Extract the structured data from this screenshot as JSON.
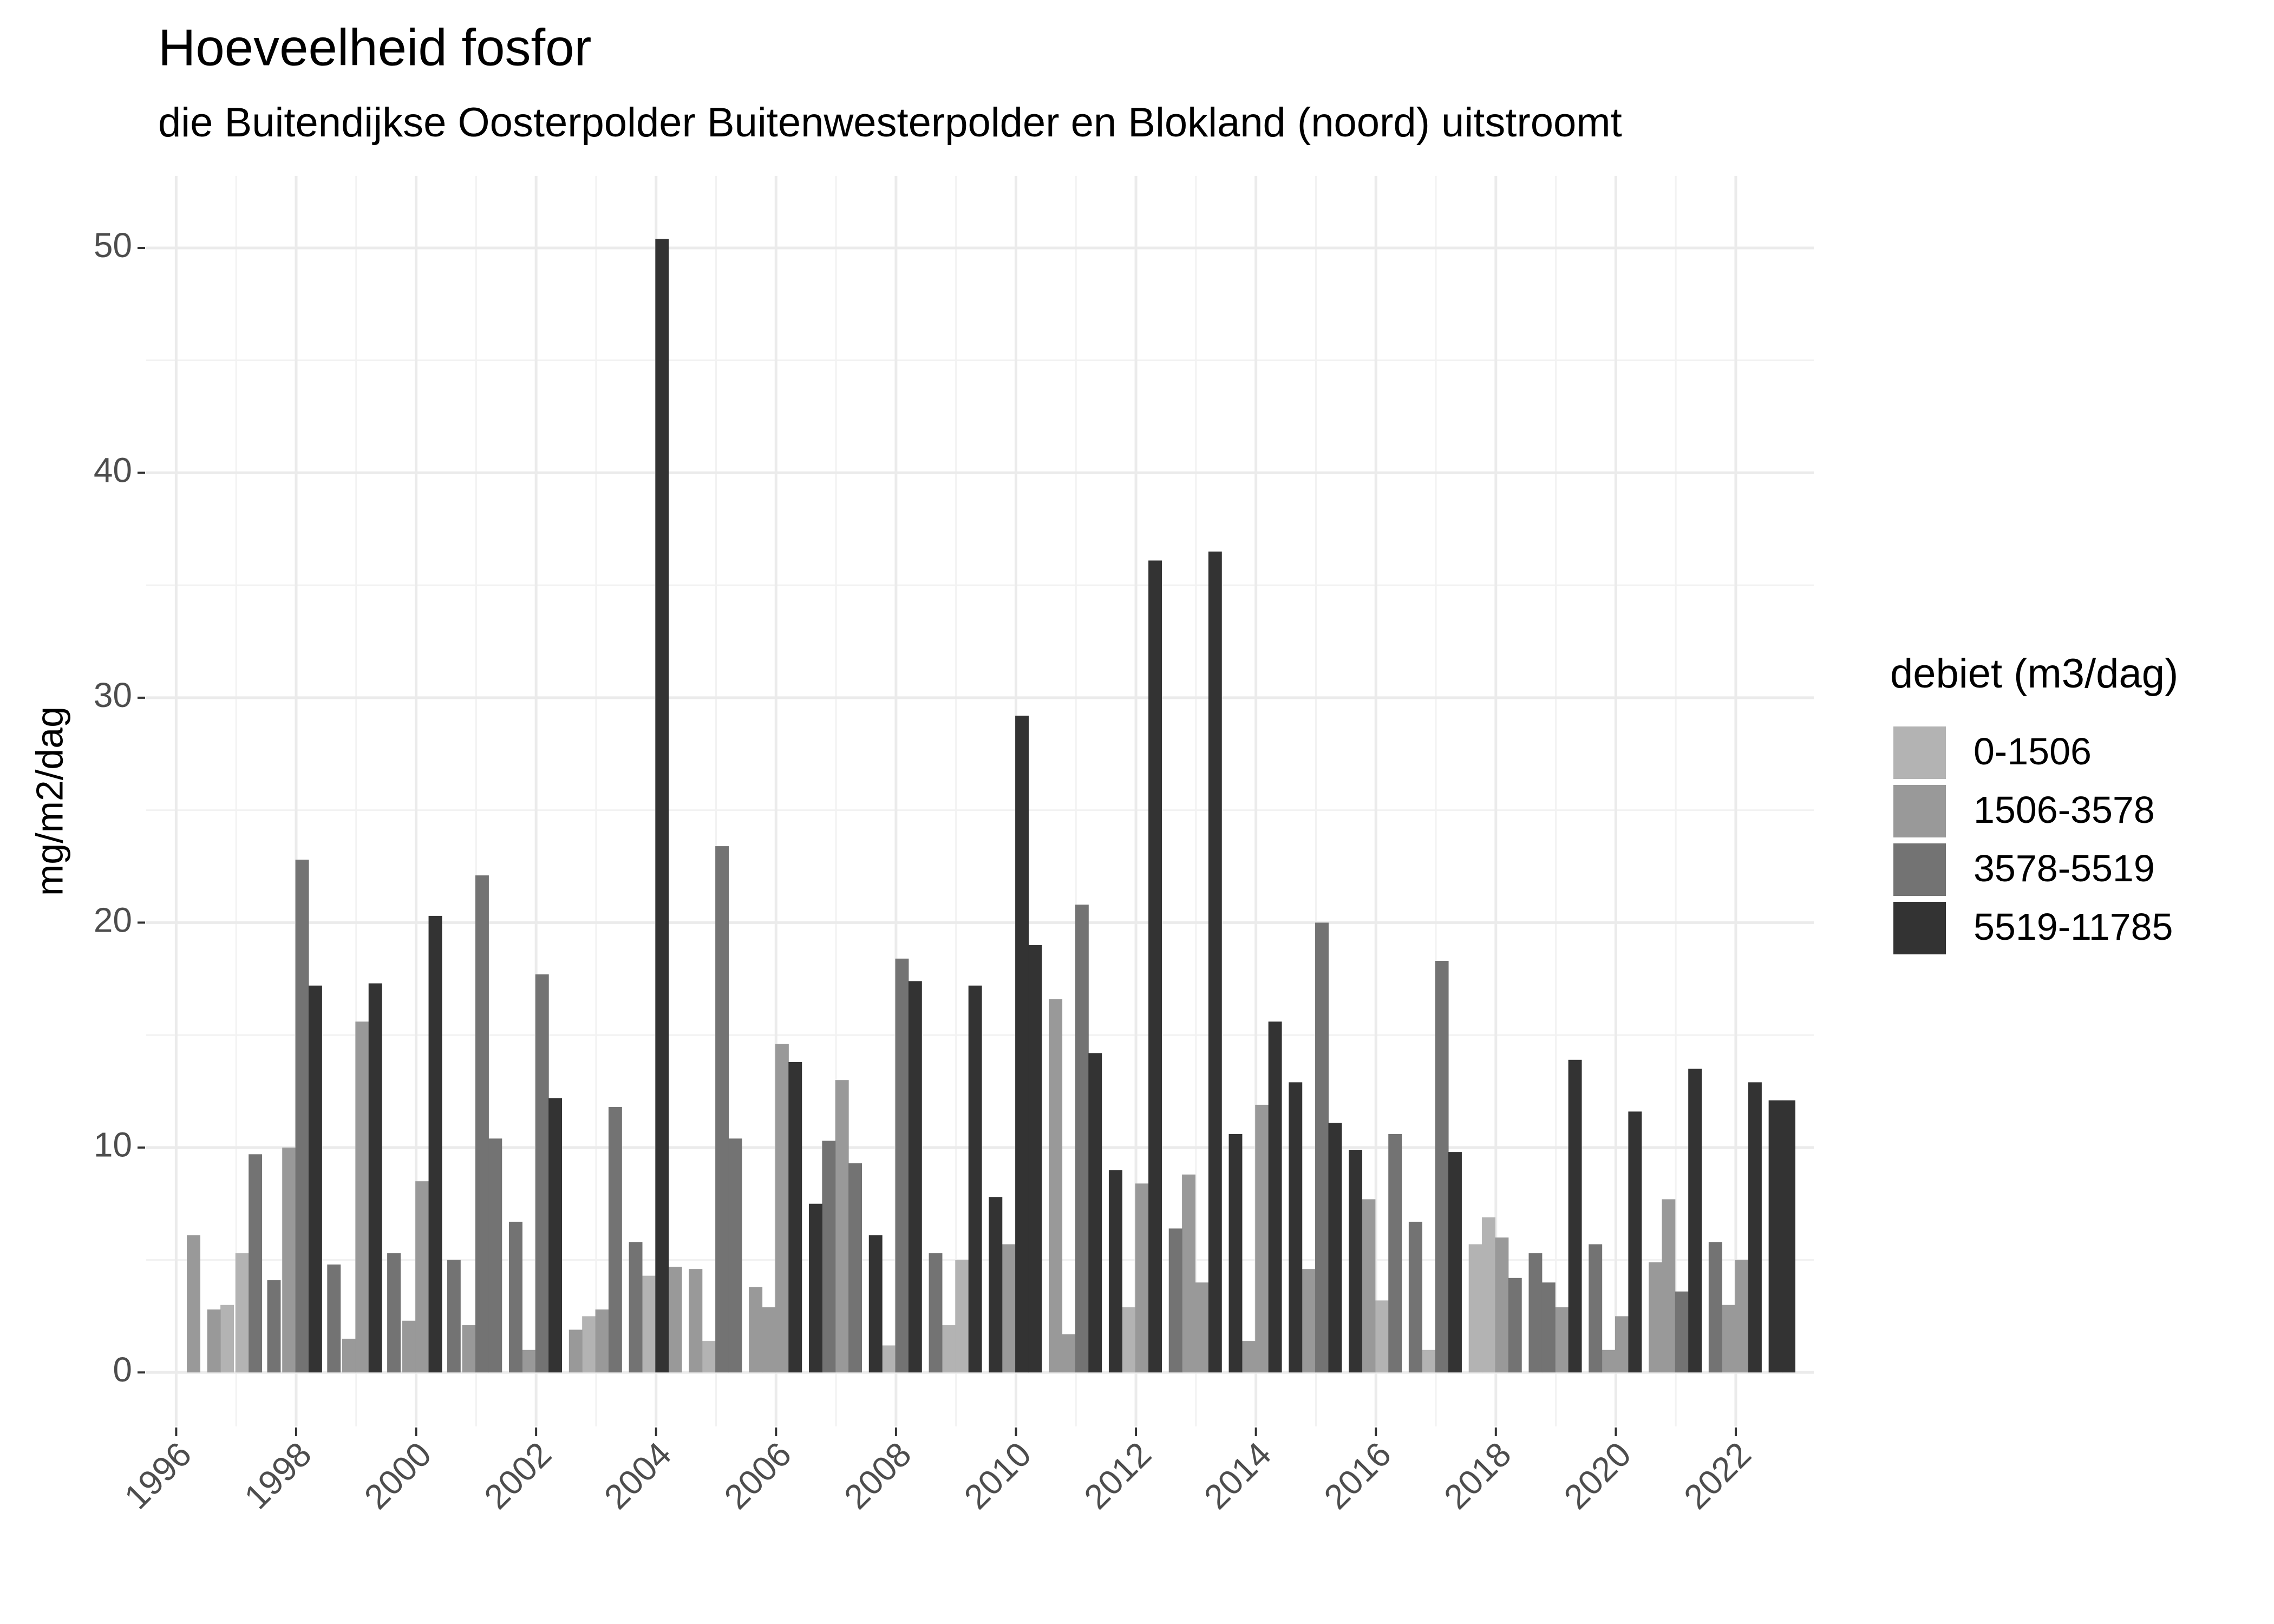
{
  "chart_data": {
    "type": "bar",
    "title": "Hoeveelheid fosfor",
    "subtitle": "die Buitendijkse Oosterpolder Buitenwesterpolder en Blokland (noord) uitstroomt",
    "y_label": "mg/m2/dag",
    "legend_title": "debiet (m3/dag)",
    "legend_position": "right",
    "grid": true,
    "xlim": [
      1995.5,
      2023.3
    ],
    "ylim": [
      -2.4,
      53.2
    ],
    "xticks": [
      1996,
      1998,
      2000,
      2002,
      2004,
      2006,
      2008,
      2010,
      2012,
      2014,
      2016,
      2018,
      2020,
      2022
    ],
    "yticks": [
      0,
      10,
      20,
      30,
      40,
      50
    ],
    "series": [
      {
        "name": "0-1506",
        "color": "#b3b3b3",
        "x": [
          1996.85,
          1997.1,
          2002.88,
          2003.88,
          2004.88,
          2007.88,
          2008.88,
          2009.1,
          2011.88,
          2016.1,
          2016.88,
          2017.66,
          2017.88
        ],
        "values": [
          3.0,
          5.3,
          2.5,
          4.3,
          1.4,
          1.2,
          2.1,
          5.0,
          2.9,
          3.2,
          1.0,
          5.7,
          6.9
        ]
      },
      {
        "name": "1506-3578",
        "color": "#999999",
        "x": [
          1996.29,
          1996.63,
          1997.88,
          1998.88,
          1999.1,
          1999.88,
          2000.1,
          2000.88,
          2001.88,
          2002.66,
          2003.1,
          2004.32,
          2004.66,
          2005.66,
          2005.88,
          2006.1,
          2007.1,
          2009.88,
          2010.66,
          2010.88,
          2012.1,
          2012.88,
          2013.1,
          2013.88,
          2014.1,
          2014.88,
          2015.88,
          2018.1,
          2019.1,
          2019.88,
          2020.1,
          2020.66,
          2020.88,
          2021.88,
          2022.1
        ],
        "values": [
          6.1,
          2.8,
          10.0,
          1.5,
          15.6,
          2.3,
          8.5,
          2.1,
          1.0,
          1.9,
          2.8,
          4.7,
          4.6,
          3.8,
          2.9,
          14.6,
          13.0,
          5.7,
          16.6,
          1.7,
          8.4,
          8.8,
          4.0,
          1.4,
          11.9,
          4.6,
          7.7,
          6.0,
          2.9,
          1.0,
          2.5,
          4.9,
          7.7,
          3.0,
          5.0
        ]
      },
      {
        "name": "3578-5519",
        "color": "#737373",
        "x": [
          1997.32,
          1997.63,
          1998.1,
          1998.63,
          1999.63,
          2000.63,
          2001.1,
          2001.32,
          2001.66,
          2002.1,
          2003.32,
          2003.66,
          2005.1,
          2005.32,
          2006.88,
          2007.32,
          2008.1,
          2008.66,
          2011.1,
          2012.66,
          2015.1,
          2016.32,
          2016.66,
          2017.1,
          2018.32,
          2018.66,
          2018.88,
          2019.66,
          2021.1,
          2021.66
        ],
        "values": [
          9.7,
          4.1,
          22.8,
          4.8,
          5.3,
          5.0,
          22.1,
          10.4,
          6.7,
          17.7,
          11.8,
          5.8,
          23.4,
          10.4,
          10.3,
          9.3,
          18.4,
          5.3,
          20.8,
          6.4,
          20.0,
          10.6,
          6.7,
          18.3,
          4.2,
          5.3,
          4.0,
          5.7,
          3.6,
          5.8
        ]
      },
      {
        "name": "5519-11785",
        "color": "#333333",
        "x": [
          1998.32,
          1999.32,
          2000.32,
          2002.32,
          2004.1,
          2006.32,
          2006.66,
          2007.66,
          2008.32,
          2009.32,
          2009.66,
          2010.1,
          2010.32,
          2011.32,
          2011.66,
          2012.32,
          2013.32,
          2013.66,
          2014.32,
          2014.66,
          2015.32,
          2015.66,
          2017.32,
          2019.32,
          2020.32,
          2021.32,
          2022.32,
          2022.66,
          2022.88
        ],
        "values": [
          17.2,
          17.3,
          20.3,
          12.2,
          50.4,
          13.8,
          7.5,
          6.1,
          17.4,
          17.2,
          7.8,
          29.2,
          19.0,
          14.2,
          9.0,
          36.1,
          36.5,
          10.6,
          15.6,
          12.9,
          11.1,
          9.9,
          9.8,
          13.9,
          11.6,
          13.5,
          12.9,
          12.1,
          12.1
        ]
      }
    ]
  }
}
